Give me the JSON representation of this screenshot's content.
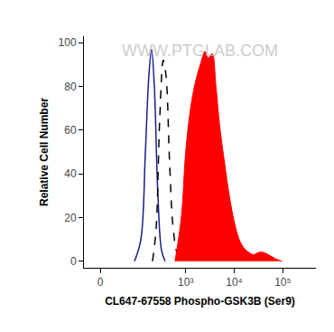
{
  "chart_data": {
    "type": "line",
    "x_label": "CL647-67558 Phospho-GSK3B (Ser9)",
    "y_label": "Relative Cell Number",
    "annotations": [
      "WWW.PTGLAB.COM"
    ],
    "xlim": [
      -30,
      480000
    ],
    "xticks": [
      0,
      {
        "value": 1000,
        "label": "10³"
      },
      {
        "value": 10000,
        "label": "10⁴"
      },
      {
        "value": 100000,
        "label": "10⁵"
      }
    ],
    "ylim": [
      -3,
      103
    ],
    "yticks": [
      0,
      20,
      40,
      60,
      80,
      100
    ],
    "grid": false,
    "series": [
      {
        "color": "#1c1c8a",
        "line_style": "solid",
        "type": "line",
        "x": [
          85,
          117,
          146,
          173,
          197,
          225,
          267,
          317,
          376
        ],
        "values": [
          0,
          10,
          50,
          85,
          97,
          80,
          30,
          5,
          0
        ]
      },
      {
        "color": "#000000",
        "line_style": "dash",
        "type": "line",
        "x": [
          206,
          245,
          291,
          345,
          393,
          466,
          553,
          684,
          886
        ],
        "values": [
          0,
          15,
          65,
          92,
          85,
          45,
          15,
          3,
          0
        ]
      },
      {
        "color": "#ff0000",
        "line_style": "solid",
        "type": "area",
        "x": [
          602,
          812,
          1000,
          1260,
          1585,
          2000,
          2500,
          2900,
          3500,
          4200,
          5000,
          6310,
          7900,
          10000,
          12600,
          15800,
          20000,
          25100,
          31600,
          39800,
          50100,
          72400,
          95500
        ],
        "values": [
          0,
          20,
          50,
          70,
          82,
          90,
          96,
          93,
          95,
          80,
          62,
          45,
          30,
          18,
          10,
          6,
          4,
          3,
          4,
          4,
          3,
          1,
          0
        ]
      }
    ]
  }
}
